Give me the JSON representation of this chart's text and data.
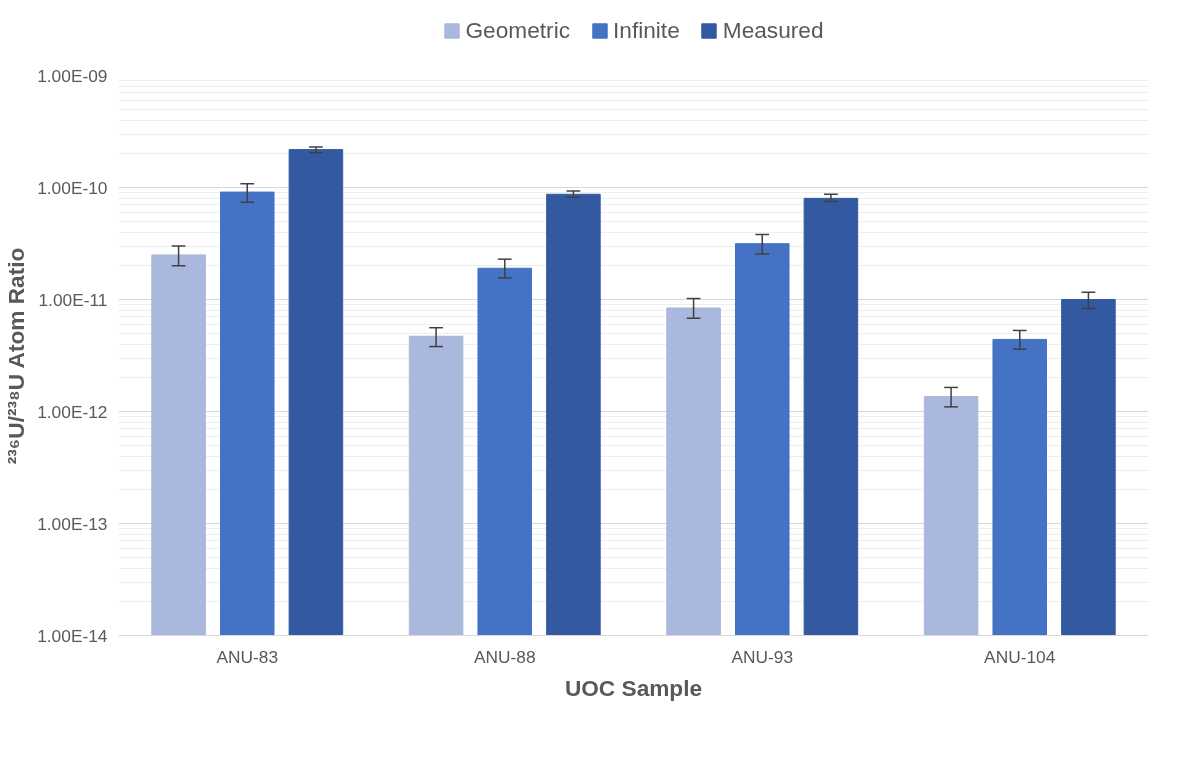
{
  "chart_data": {
    "type": "bar",
    "xlabel": "UOC Sample",
    "ylabel": "²³⁶U/²³⁸U Atom Ratio",
    "categories": [
      "ANU-83",
      "ANU-88",
      "ANU-93",
      "ANU-104"
    ],
    "series": [
      {
        "name": "Geometric",
        "color": "#a9b8dc",
        "values": [
          2.5e-11,
          4.7e-12,
          8.4e-12,
          1.36e-12
        ],
        "errors": [
          [
            2e-11,
            3e-11
          ],
          [
            3.8e-12,
            5.6e-12
          ],
          [
            6.8e-12,
            1.02e-11
          ],
          [
            1.1e-12,
            1.64e-12
          ]
        ]
      },
      {
        "name": "Infinite",
        "color": "#4472c4",
        "values": [
          9.1e-11,
          1.9e-11,
          3.15e-11,
          4.4e-12
        ],
        "errors": [
          [
            7.4e-11,
            1.08e-10
          ],
          [
            1.56e-11,
            2.29e-11
          ],
          [
            2.55e-11,
            3.8e-11
          ],
          [
            3.6e-12,
            5.3e-12
          ]
        ]
      },
      {
        "name": "Measured",
        "color": "#335aa0",
        "values": [
          2.18e-10,
          8.7e-11,
          8e-11,
          1e-11
        ],
        "errors": [
          [
            2.04e-10,
            2.3e-10
          ],
          [
            8.2e-11,
            9.3e-11
          ],
          [
            7.5e-11,
            8.7e-11
          ],
          [
            8.3e-12,
            1.16e-11
          ]
        ]
      }
    ],
    "log": "y",
    "ylim": [
      1e-14,
      1e-09
    ],
    "yticks": [
      {
        "value": 1e-14,
        "label": "1.00E-14"
      },
      {
        "value": 1e-13,
        "label": "1.00E-13"
      },
      {
        "value": 1e-12,
        "label": "1.00E-12"
      },
      {
        "value": 1e-11,
        "label": "1.00E-11"
      },
      {
        "value": 1e-10,
        "label": "1.00E-10"
      },
      {
        "value": 1e-09,
        "label": "1.00E-09"
      }
    ],
    "grid": "y",
    "legend": "top"
  }
}
